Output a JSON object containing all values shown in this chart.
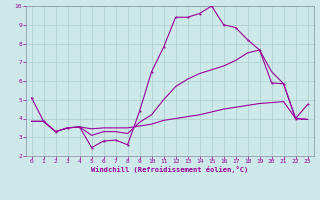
{
  "xlabel": "Windchill (Refroidissement éolien,°C)",
  "background_color": "#cce8e8",
  "grid_color": "#aacccc",
  "line_color": "#990099",
  "spine_color": "#8888aa",
  "xlim": [
    -0.5,
    23.5
  ],
  "ylim": [
    2,
    10
  ],
  "xticks": [
    0,
    1,
    2,
    3,
    4,
    5,
    6,
    7,
    8,
    9,
    10,
    11,
    12,
    13,
    14,
    15,
    16,
    17,
    18,
    19,
    20,
    21,
    22,
    23
  ],
  "yticks": [
    2,
    3,
    4,
    5,
    6,
    7,
    8,
    9,
    10
  ],
  "line1_x": [
    0,
    1,
    2,
    3,
    4,
    5,
    6,
    7,
    8,
    9,
    10,
    11,
    12,
    13,
    14,
    15,
    16,
    17,
    18,
    19,
    20,
    21,
    22,
    23
  ],
  "line1_y": [
    5.1,
    3.85,
    3.3,
    3.5,
    3.55,
    2.45,
    2.8,
    2.85,
    2.6,
    4.4,
    6.5,
    7.8,
    9.4,
    9.4,
    9.6,
    10.0,
    9.0,
    8.85,
    8.2,
    7.65,
    5.9,
    5.85,
    4.0,
    4.75
  ],
  "line2_x": [
    0,
    1,
    2,
    3,
    4,
    5,
    6,
    7,
    8,
    9,
    10,
    11,
    12,
    13,
    14,
    15,
    16,
    17,
    18,
    19,
    20,
    21,
    22,
    23
  ],
  "line2_y": [
    3.85,
    3.85,
    3.3,
    3.5,
    3.55,
    3.45,
    3.5,
    3.5,
    3.5,
    3.6,
    3.7,
    3.9,
    4.0,
    4.1,
    4.2,
    4.35,
    4.5,
    4.6,
    4.7,
    4.8,
    4.85,
    4.9,
    4.0,
    3.95
  ],
  "line3_x": [
    0,
    1,
    2,
    3,
    4,
    5,
    6,
    7,
    8,
    9,
    10,
    11,
    12,
    13,
    14,
    15,
    16,
    17,
    18,
    19,
    20,
    21,
    22,
    23
  ],
  "line3_y": [
    3.85,
    3.85,
    3.3,
    3.5,
    3.55,
    3.1,
    3.3,
    3.3,
    3.2,
    3.8,
    4.2,
    5.0,
    5.7,
    6.1,
    6.4,
    6.6,
    6.8,
    7.1,
    7.5,
    7.65,
    6.5,
    5.85,
    4.0,
    3.95
  ]
}
